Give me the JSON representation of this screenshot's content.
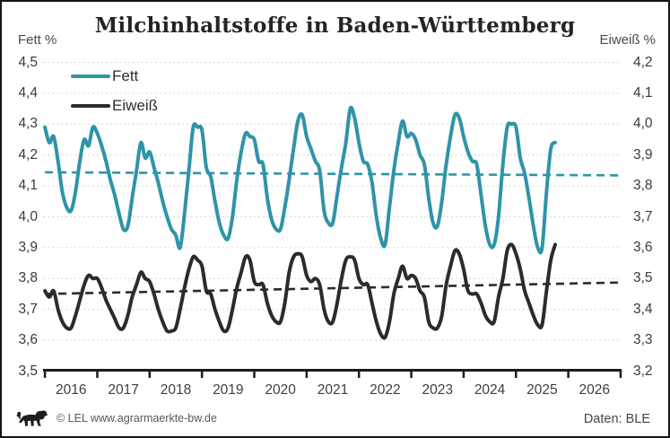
{
  "title": "Milchinhaltstoffe in Baden-Württemberg",
  "left_axis": {
    "label": "Fett %",
    "ticks": [
      "4,5",
      "4,4",
      "4,3",
      "4,2",
      "4,1",
      "4,0",
      "3,9",
      "3,8",
      "3,7",
      "3,6",
      "3,5"
    ]
  },
  "right_axis": {
    "label": "Eiweiß %",
    "ticks": [
      "4,2",
      "4,1",
      "4,0",
      "3,9",
      "3,8",
      "3,7",
      "3,6",
      "3,5",
      "3,4",
      "3,3",
      "3,2"
    ]
  },
  "x_axis": {
    "years": [
      "2016",
      "2017",
      "2018",
      "2019",
      "2020",
      "2021",
      "2022",
      "2023",
      "2024",
      "2025",
      "2026"
    ]
  },
  "legend": [
    {
      "label": "Fett",
      "color": "#2E94A8"
    },
    {
      "label": "Eiweiß",
      "color": "#2B2B2B"
    }
  ],
  "footer": {
    "copyright": "© LEL www.agrarmaerkte-bw.de",
    "source": "Daten: BLE"
  },
  "colors": {
    "fett": "#2E94A8",
    "eiweiss": "#2B2B2B",
    "grid": "#D6D6D6",
    "axis": "#1C1C1C",
    "background": "#FFFFFF"
  },
  "chart_data": {
    "type": "line",
    "title": "Milchinhaltstoffe in Baden-Württemberg",
    "x_start": "2016-01",
    "x_end": "2025-10",
    "x_unit": "month",
    "left_ylim": [
      3.5,
      4.5
    ],
    "right_ylim": [
      3.2,
      4.2
    ],
    "grid": true,
    "legend_position": "top-left-inside",
    "series": [
      {
        "name": "Fett",
        "axis": "left",
        "unit": "%",
        "color": "#2E94A8",
        "trend": {
          "start": 4.144,
          "end": 4.134
        },
        "monthly_values": [
          4.29,
          4.24,
          4.26,
          4.18,
          4.08,
          4.03,
          4.02,
          4.08,
          4.18,
          4.25,
          4.23,
          4.29,
          4.27,
          4.23,
          4.18,
          4.12,
          4.07,
          4.01,
          3.96,
          3.97,
          4.06,
          4.15,
          4.24,
          4.19,
          4.21,
          4.16,
          4.11,
          4.05,
          4.0,
          3.96,
          3.94,
          3.9,
          4.01,
          4.15,
          4.29,
          4.29,
          4.28,
          4.16,
          4.13,
          4.05,
          3.98,
          3.94,
          3.93,
          4.0,
          4.12,
          4.21,
          4.27,
          4.26,
          4.25,
          4.18,
          4.17,
          4.06,
          3.99,
          3.96,
          3.96,
          4.03,
          4.12,
          4.22,
          4.31,
          4.33,
          4.26,
          4.22,
          4.18,
          4.15,
          4.02,
          3.98,
          3.98,
          4.07,
          4.16,
          4.24,
          4.35,
          4.32,
          4.24,
          4.18,
          4.17,
          4.11,
          4.0,
          3.93,
          3.91,
          4.03,
          4.15,
          4.24,
          4.31,
          4.26,
          4.27,
          4.25,
          4.2,
          4.17,
          4.06,
          3.98,
          3.97,
          4.05,
          4.17,
          4.26,
          4.33,
          4.32,
          4.26,
          4.21,
          4.18,
          4.17,
          4.07,
          3.97,
          3.91,
          3.91,
          4.0,
          4.17,
          4.29,
          4.3,
          4.29,
          4.19,
          4.14,
          4.06,
          3.97,
          3.9,
          3.9,
          4.08,
          4.22,
          4.24
        ]
      },
      {
        "name": "Eiweiß",
        "axis": "right",
        "unit": "%",
        "color": "#2B2B2B",
        "trend": {
          "start": 3.45,
          "end": 3.487
        },
        "monthly_values": [
          3.46,
          3.44,
          3.46,
          3.4,
          3.36,
          3.34,
          3.34,
          3.38,
          3.43,
          3.48,
          3.51,
          3.5,
          3.5,
          3.47,
          3.43,
          3.4,
          3.37,
          3.34,
          3.34,
          3.38,
          3.44,
          3.48,
          3.52,
          3.5,
          3.49,
          3.45,
          3.4,
          3.36,
          3.33,
          3.33,
          3.34,
          3.4,
          3.47,
          3.53,
          3.57,
          3.56,
          3.54,
          3.46,
          3.45,
          3.4,
          3.36,
          3.33,
          3.34,
          3.4,
          3.47,
          3.52,
          3.57,
          3.56,
          3.49,
          3.48,
          3.48,
          3.42,
          3.38,
          3.36,
          3.36,
          3.42,
          3.52,
          3.57,
          3.58,
          3.57,
          3.51,
          3.49,
          3.5,
          3.48,
          3.4,
          3.36,
          3.36,
          3.42,
          3.5,
          3.56,
          3.57,
          3.56,
          3.5,
          3.48,
          3.48,
          3.42,
          3.36,
          3.32,
          3.31,
          3.36,
          3.45,
          3.5,
          3.54,
          3.5,
          3.51,
          3.5,
          3.46,
          3.44,
          3.36,
          3.34,
          3.34,
          3.38,
          3.48,
          3.54,
          3.59,
          3.58,
          3.53,
          3.46,
          3.45,
          3.45,
          3.42,
          3.38,
          3.36,
          3.36,
          3.44,
          3.5,
          3.59,
          3.61,
          3.58,
          3.53,
          3.46,
          3.42,
          3.38,
          3.35,
          3.35,
          3.46,
          3.56,
          3.61
        ]
      }
    ]
  }
}
